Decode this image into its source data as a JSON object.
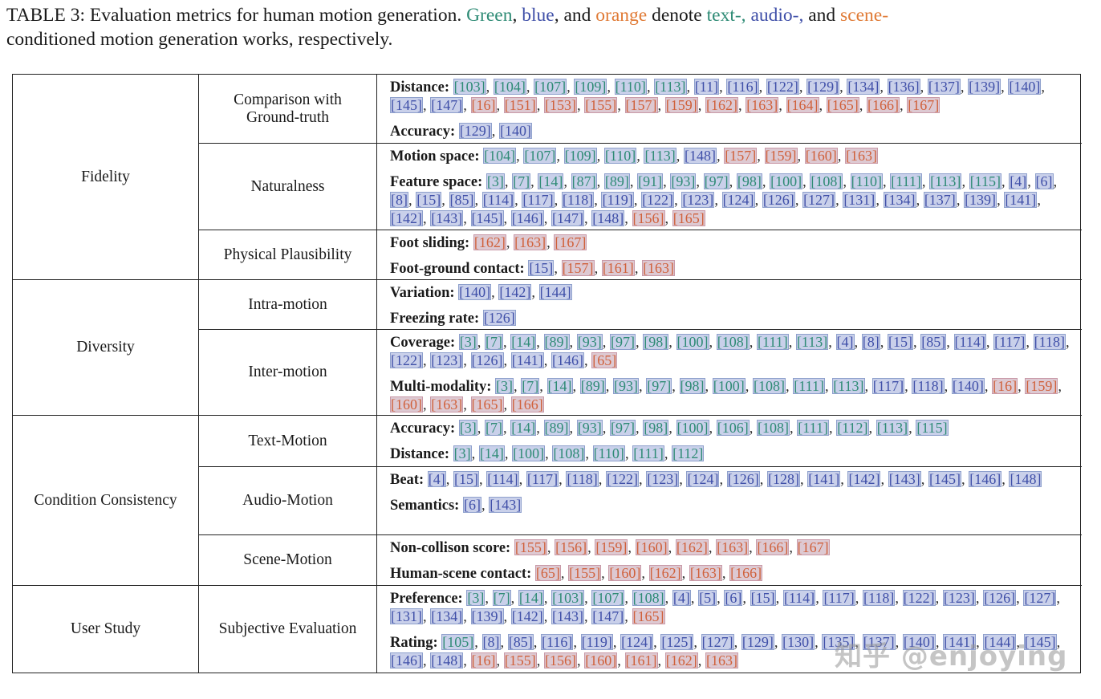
{
  "caption": {
    "prefix": "TABLE 3: Evaluation metrics for human motion generation.",
    "green_word": "Green",
    "blue_word": "blue",
    "and_word": "and",
    "orange_word": "orange",
    "denote_word": "denote",
    "text_word": "text-,",
    "audio_word": "audio-,",
    "and_word2": "and",
    "scene_word": "scene-",
    "suffix": "conditioned motion generation works, respectively."
  },
  "watermark": "知乎 @enjoying",
  "colors": {
    "text": "#2e8b75",
    "audio": "#3f4fa8",
    "scene": "#d0603a"
  },
  "table": {
    "rows": [
      {
        "category": "Fidelity",
        "subs": [
          {
            "name": "Comparison with Ground-truth",
            "metrics": [
              {
                "label": "Distance:",
                "refs": {
                  "text": [
                    "[103]",
                    "[104]",
                    "[107]",
                    "[109]",
                    "[110]",
                    "[113]"
                  ],
                  "audio": [
                    "[11]",
                    "[116]",
                    "[122]",
                    "[129]",
                    "[134]",
                    "[136]",
                    "[137]",
                    "[139]",
                    "[140]",
                    "[145]",
                    "[147]"
                  ],
                  "scene": [
                    "[16]",
                    "[151]",
                    "[153]",
                    "[155]",
                    "[157]",
                    "[159]",
                    "[162]",
                    "[163]",
                    "[164]",
                    "[165]",
                    "[166]",
                    "[167]"
                  ]
                }
              },
              {
                "label": "Accuracy:",
                "refs": {
                  "text": [],
                  "audio": [
                    "[129]",
                    "[140]"
                  ],
                  "scene": []
                }
              }
            ]
          },
          {
            "name": "Naturalness",
            "metrics": [
              {
                "label": "Motion space:",
                "refs": {
                  "text": [
                    "[104]",
                    "[107]",
                    "[109]",
                    "[110]",
                    "[113]"
                  ],
                  "audio": [
                    "[148]"
                  ],
                  "scene": [
                    "[157]",
                    "[159]",
                    "[160]",
                    "[163]"
                  ]
                }
              },
              {
                "label": "Feature space:",
                "refs": {
                  "text": [
                    "[3]",
                    "[7]",
                    "[14]",
                    "[87]",
                    "[89]",
                    "[91]",
                    "[93]",
                    "[97]",
                    "[98]",
                    "[100]",
                    "[108]",
                    "[110]",
                    "[111]",
                    "[113]",
                    "[115]"
                  ],
                  "audio": [
                    "[4]",
                    "[6]",
                    "[8]",
                    "[15]",
                    "[85]",
                    "[114]",
                    "[117]",
                    "[118]",
                    "[119]",
                    "[122]",
                    "[123]",
                    "[124]",
                    "[126]",
                    "[127]",
                    "[131]",
                    "[134]",
                    "[137]",
                    "[139]",
                    "[141]",
                    "[142]",
                    "[143]",
                    "[145]",
                    "[146]",
                    "[147]",
                    "[148]"
                  ],
                  "scene": [
                    "[156]",
                    "[165]"
                  ]
                }
              }
            ]
          },
          {
            "name": "Physical Plausibility",
            "metrics": [
              {
                "label": "Foot sliding:",
                "refs": {
                  "text": [],
                  "audio": [],
                  "scene": [
                    "[162]",
                    "[163]",
                    "[167]"
                  ]
                }
              },
              {
                "label": "Foot-ground contact:",
                "refs": {
                  "text": [],
                  "audio": [
                    "[15]"
                  ],
                  "scene": [
                    "[157]",
                    "[161]",
                    "[163]"
                  ]
                }
              }
            ]
          }
        ]
      },
      {
        "category": "Diversity",
        "subs": [
          {
            "name": "Intra-motion",
            "metrics": [
              {
                "label": "Variation:",
                "refs": {
                  "text": [],
                  "audio": [
                    "[140]",
                    "[142]",
                    "[144]"
                  ],
                  "scene": []
                }
              },
              {
                "label": "Freezing rate:",
                "refs": {
                  "text": [],
                  "audio": [
                    "[126]"
                  ],
                  "scene": []
                }
              }
            ]
          },
          {
            "name": "Inter-motion",
            "metrics": [
              {
                "label": "Coverage:",
                "refs": {
                  "text": [
                    "[3]",
                    "[7]",
                    "[14]",
                    "[89]",
                    "[93]",
                    "[97]",
                    "[98]",
                    "[100]",
                    "[108]",
                    "[111]",
                    "[113]"
                  ],
                  "audio": [
                    "[4]",
                    "[8]",
                    "[15]",
                    "[85]",
                    "[114]",
                    "[117]",
                    "[118]",
                    "[122]",
                    "[123]",
                    "[126]",
                    "[141]",
                    "[146]"
                  ],
                  "scene": [
                    "[65]"
                  ]
                }
              },
              {
                "label": "Multi-modality:",
                "refs": {
                  "text": [
                    "[3]",
                    "[7]",
                    "[14]",
                    "[89]",
                    "[93]",
                    "[97]",
                    "[98]",
                    "[100]",
                    "[108]",
                    "[111]",
                    "[113]"
                  ],
                  "audio": [
                    "[117]",
                    "[118]",
                    "[140]"
                  ],
                  "scene": [
                    "[16]",
                    "[159]",
                    "[160]",
                    "[163]",
                    "[165]",
                    "[166]"
                  ]
                }
              }
            ]
          }
        ]
      },
      {
        "category": "Condition Consistency",
        "subs": [
          {
            "name": "Text-Motion",
            "metrics": [
              {
                "label": "Accuracy:",
                "refs": {
                  "text": [
                    "[3]",
                    "[7]",
                    "[14]",
                    "[89]",
                    "[93]",
                    "[97]",
                    "[98]",
                    "[100]",
                    "[106]",
                    "[108]",
                    "[111]",
                    "[112]",
                    "[113]",
                    "[115]"
                  ],
                  "audio": [],
                  "scene": []
                }
              },
              {
                "label": "Distance:",
                "refs": {
                  "text": [
                    "[3]",
                    "[14]",
                    "[100]",
                    "[108]",
                    "[110]",
                    "[111]",
                    "[112]"
                  ],
                  "audio": [],
                  "scene": []
                }
              }
            ]
          },
          {
            "name": "Audio-Motion",
            "metrics": [
              {
                "label": "Beat:",
                "refs": {
                  "text": [],
                  "audio": [
                    "[4]",
                    "[15]",
                    "[114]",
                    "[117]",
                    "[118]",
                    "[122]",
                    "[123]",
                    "[124]",
                    "[126]",
                    "[128]",
                    "[141]",
                    "[142]",
                    "[143]",
                    "[145]",
                    "[146]",
                    "[148]"
                  ],
                  "scene": []
                }
              },
              {
                "label": "Semantics:",
                "refs": {
                  "text": [],
                  "audio": [
                    "[6]",
                    "[143]"
                  ],
                  "scene": []
                }
              }
            ]
          },
          {
            "name": "Scene-Motion",
            "metrics": [
              {
                "label": "Non-collison score:",
                "refs": {
                  "text": [],
                  "audio": [],
                  "scene": [
                    "[155]",
                    "[156]",
                    "[159]",
                    "[160]",
                    "[162]",
                    "[163]",
                    "[166]",
                    "[167]"
                  ]
                }
              },
              {
                "label": "Human-scene contact:",
                "refs": {
                  "text": [],
                  "audio": [],
                  "scene": [
                    "[65]",
                    "[155]",
                    "[160]",
                    "[162]",
                    "[163]",
                    "[166]"
                  ]
                }
              }
            ]
          }
        ]
      },
      {
        "category": "User Study",
        "subs": [
          {
            "name": "Subjective Evaluation",
            "metrics": [
              {
                "label": "Preference:",
                "refs": {
                  "text": [
                    "[3]",
                    "[7]",
                    "[14]",
                    "[103]",
                    "[107]",
                    "[108]"
                  ],
                  "audio": [
                    "[4]",
                    "[5]",
                    "[6]",
                    "[15]",
                    "[114]",
                    "[117]",
                    "[118]",
                    "[122]",
                    "[123]",
                    "[126]",
                    "[127]",
                    "[131]",
                    "[134]",
                    "[139]",
                    "[142]",
                    "[143]",
                    "[147]"
                  ],
                  "scene": [
                    "[165]"
                  ]
                }
              },
              {
                "label": "Rating:",
                "refs": {
                  "text": [
                    "[105]"
                  ],
                  "audio": [
                    "[8]",
                    "[85]",
                    "[116]",
                    "[119]",
                    "[124]",
                    "[125]",
                    "[127]",
                    "[129]",
                    "[130]",
                    "[135]",
                    "[137]",
                    "[140]",
                    "[141]",
                    "[144]",
                    "[145]",
                    "[146]",
                    "[148]"
                  ],
                  "scene": [
                    "[16]",
                    "[155]",
                    "[156]",
                    "[160]",
                    "[161]",
                    "[162]",
                    "[163]"
                  ]
                }
              }
            ]
          }
        ]
      }
    ]
  }
}
